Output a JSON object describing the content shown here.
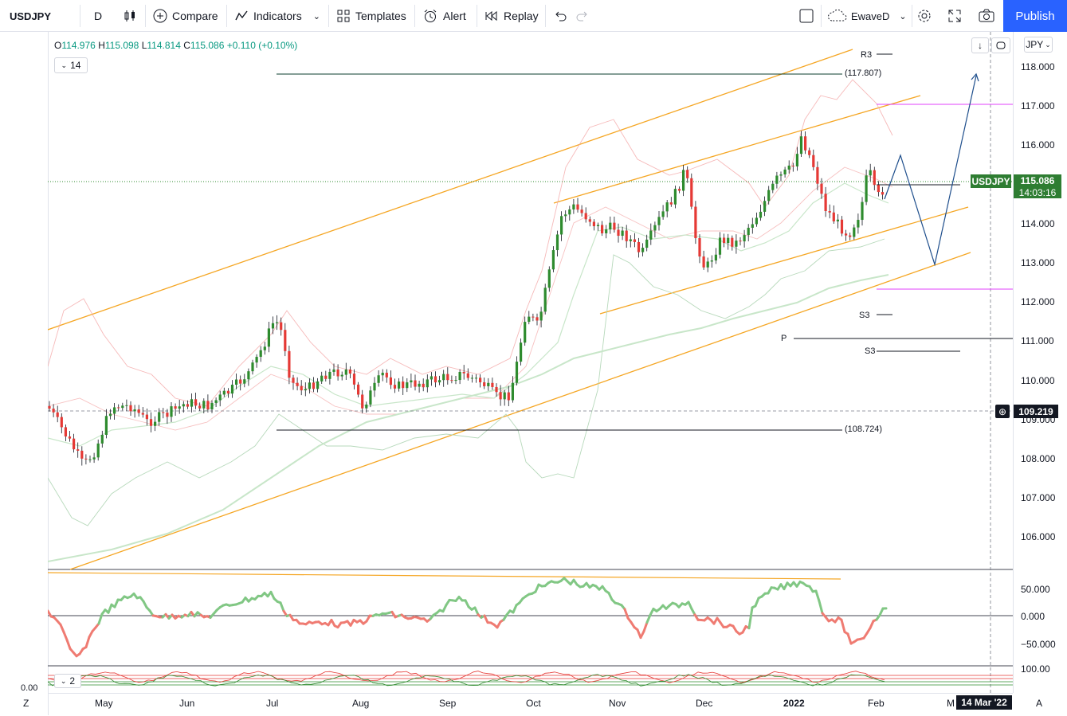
{
  "toolbar": {
    "symbol": "USDJPY",
    "interval": "D",
    "compare_label": "Compare",
    "indicators_label": "Indicators",
    "templates_label": "Templates",
    "alert_label": "Alert",
    "replay_label": "Replay",
    "layout_name": "EwaveD",
    "publish_label": "Publish"
  },
  "legend": {
    "open_k": "O",
    "open": "114.976",
    "high_k": "H",
    "high": "115.098",
    "low_k": "L",
    "low": "114.814",
    "close_k": "C",
    "close": "115.086",
    "change": "+0.110 (+0.10%)",
    "indicator_param": "14",
    "lower_param": "2"
  },
  "axis": {
    "currency": "JPY",
    "price_ticks": [
      "118.000",
      "117.000",
      "116.000",
      "115.000",
      "114.000",
      "113.000",
      "112.000",
      "111.000",
      "110.000",
      "109.000",
      "108.000",
      "107.000",
      "106.000"
    ],
    "osc_ticks": [
      "50.000",
      "0.000",
      "−50.000"
    ],
    "bottom_tick": "100.00",
    "left_zero": "0.00",
    "price_badge_symbol": "USDJPY",
    "price_badge_value": "115.086",
    "price_badge_timer": "14:03:16",
    "crosshair_value": "109.219",
    "crosshair_date": "14 Mar '22",
    "x_ticks": [
      "May",
      "Jun",
      "Jul",
      "Aug",
      "Sep",
      "Oct",
      "Nov",
      "Dec",
      "2022",
      "Feb",
      "M"
    ],
    "zoom_left": "Z",
    "auto_scale": "A"
  },
  "levels": {
    "top_target": "(117.807)",
    "bottom_target": "(108.724)",
    "r3": "R3",
    "s3a": "S3",
    "p": "P",
    "s3b": "S3"
  },
  "colors": {
    "up": "#2e8b2e",
    "down": "#e53935",
    "channel": "#f5a623",
    "accent": "#2962ff"
  }
}
